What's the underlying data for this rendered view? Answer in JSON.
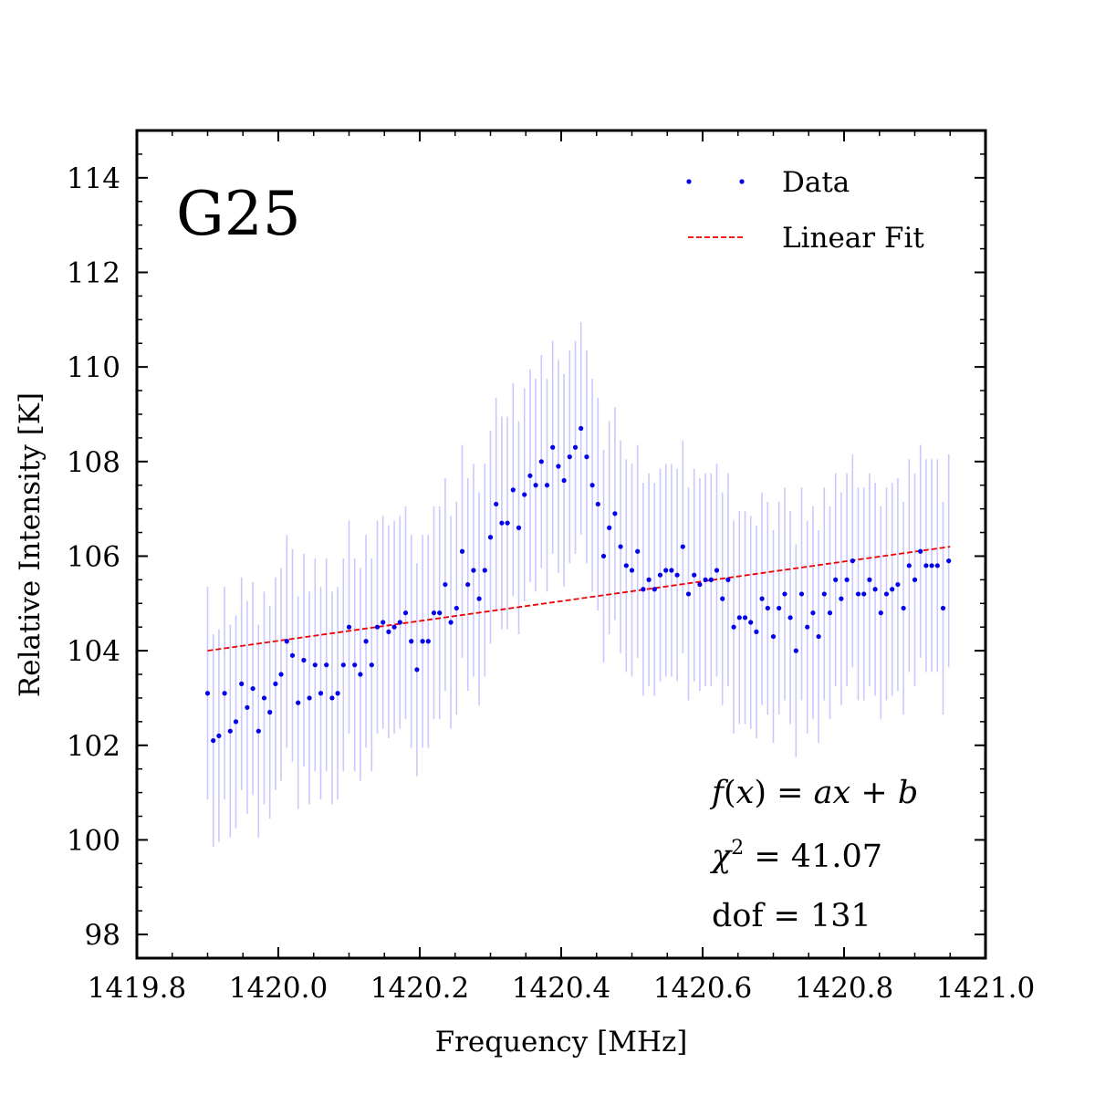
{
  "chart_data": {
    "type": "scatter",
    "panel_label": "G25",
    "xlabel": "Frequency [MHz]",
    "ylabel": "Relative Intensity [K]",
    "xlim": [
      1419.8,
      1421.0
    ],
    "ylim": [
      97.5,
      115
    ],
    "xticks": [
      1419.8,
      1420.0,
      1420.2,
      1420.4,
      1420.6,
      1420.8,
      1421.0
    ],
    "xtick_labels": [
      "1419.8",
      "1420.0",
      "1420.2",
      "1420.4",
      "1420.6",
      "1420.8",
      "1421.0"
    ],
    "yticks": [
      98,
      100,
      102,
      104,
      106,
      108,
      110,
      112,
      114
    ],
    "ytick_labels": [
      "98",
      "100",
      "102",
      "104",
      "106",
      "108",
      "110",
      "112",
      "114"
    ],
    "legend": {
      "placement": "top-right",
      "entries": [
        {
          "label": "Data",
          "style": "dots",
          "color": "#0000ee"
        },
        {
          "label": "Linear Fit",
          "style": "dashed",
          "color": "#ee0000"
        }
      ]
    },
    "annotations": {
      "formula_prefix": "f",
      "formula_mid": "(",
      "formula_var": "x",
      "formula_rest": ") = ",
      "formula_a": "a",
      "formula_x2": "x",
      "formula_plus": " + ",
      "formula_b": "b",
      "chi_symbol": "χ",
      "chi_sup": "2",
      "chi_value": " = 41.07",
      "dof_text": "dof = 131"
    },
    "fit_line": {
      "x": [
        1419.9,
        1420.95
      ],
      "y": [
        104.0,
        106.2
      ],
      "color": "#ee0000"
    },
    "error_bar": 2.25,
    "colors": {
      "data": "#0000ee",
      "errorbar": "#c8c8ff",
      "fit": "#ee0000"
    },
    "series": [
      {
        "name": "Data",
        "x": [
          1419.9,
          1419.908,
          1419.916,
          1419.924,
          1419.932,
          1419.94,
          1419.948,
          1419.956,
          1419.964,
          1419.972,
          1419.98,
          1419.988,
          1419.996,
          1420.004,
          1420.012,
          1420.02,
          1420.028,
          1420.036,
          1420.044,
          1420.052,
          1420.06,
          1420.068,
          1420.076,
          1420.084,
          1420.092,
          1420.1,
          1420.108,
          1420.116,
          1420.124,
          1420.132,
          1420.14,
          1420.148,
          1420.156,
          1420.164,
          1420.172,
          1420.18,
          1420.188,
          1420.196,
          1420.204,
          1420.212,
          1420.22,
          1420.228,
          1420.236,
          1420.244,
          1420.252,
          1420.26,
          1420.268,
          1420.276,
          1420.284,
          1420.292,
          1420.3,
          1420.308,
          1420.316,
          1420.324,
          1420.332,
          1420.34,
          1420.348,
          1420.356,
          1420.364,
          1420.372,
          1420.38,
          1420.388,
          1420.396,
          1420.404,
          1420.412,
          1420.42,
          1420.428,
          1420.436,
          1420.444,
          1420.452,
          1420.46,
          1420.468,
          1420.476,
          1420.484,
          1420.492,
          1420.5,
          1420.508,
          1420.516,
          1420.524,
          1420.532,
          1420.54,
          1420.548,
          1420.556,
          1420.564,
          1420.572,
          1420.58,
          1420.588,
          1420.596,
          1420.604,
          1420.612,
          1420.62,
          1420.628,
          1420.636,
          1420.644,
          1420.652,
          1420.66,
          1420.668,
          1420.676,
          1420.684,
          1420.692,
          1420.7,
          1420.708,
          1420.716,
          1420.724,
          1420.732,
          1420.74,
          1420.748,
          1420.756,
          1420.764,
          1420.772,
          1420.78,
          1420.788,
          1420.796,
          1420.804,
          1420.812,
          1420.82,
          1420.828,
          1420.836,
          1420.844,
          1420.852,
          1420.86,
          1420.868,
          1420.876,
          1420.884,
          1420.892,
          1420.9,
          1420.908,
          1420.916,
          1420.924,
          1420.932,
          1420.94,
          1420.948
        ],
        "y": [
          103.1,
          102.1,
          102.2,
          103.1,
          102.3,
          102.5,
          103.3,
          102.8,
          103.2,
          102.3,
          103.0,
          102.7,
          103.3,
          103.5,
          104.2,
          103.9,
          102.9,
          103.8,
          103.0,
          103.7,
          103.1,
          103.7,
          103.0,
          103.1,
          103.7,
          104.5,
          103.7,
          103.5,
          104.2,
          103.7,
          104.5,
          104.6,
          104.4,
          104.5,
          104.6,
          104.8,
          104.2,
          103.6,
          104.2,
          104.2,
          104.8,
          104.8,
          105.4,
          104.6,
          104.9,
          106.1,
          105.4,
          105.7,
          105.1,
          105.7,
          106.4,
          107.1,
          106.7,
          106.7,
          107.4,
          106.6,
          107.3,
          107.7,
          107.5,
          108.0,
          107.5,
          108.3,
          107.9,
          107.6,
          108.1,
          108.3,
          108.7,
          108.1,
          107.5,
          107.1,
          106.0,
          106.6,
          106.9,
          106.2,
          105.8,
          105.7,
          106.1,
          105.3,
          105.5,
          105.3,
          105.6,
          105.7,
          105.7,
          105.6,
          106.2,
          105.2,
          105.6,
          105.4,
          105.5,
          105.5,
          105.7,
          105.1,
          105.5,
          104.5,
          104.7,
          104.7,
          104.6,
          104.4,
          105.1,
          104.9,
          104.3,
          104.9,
          105.2,
          104.7,
          104.0,
          105.2,
          104.5,
          104.8,
          104.3,
          105.2,
          104.8,
          105.5,
          105.1,
          105.5,
          105.9,
          105.2,
          105.2,
          105.5,
          105.3,
          104.8,
          105.2,
          105.3,
          105.4,
          104.9,
          105.8,
          105.5,
          106.1,
          105.8,
          105.8,
          105.8,
          104.9,
          105.9
        ]
      }
    ]
  }
}
